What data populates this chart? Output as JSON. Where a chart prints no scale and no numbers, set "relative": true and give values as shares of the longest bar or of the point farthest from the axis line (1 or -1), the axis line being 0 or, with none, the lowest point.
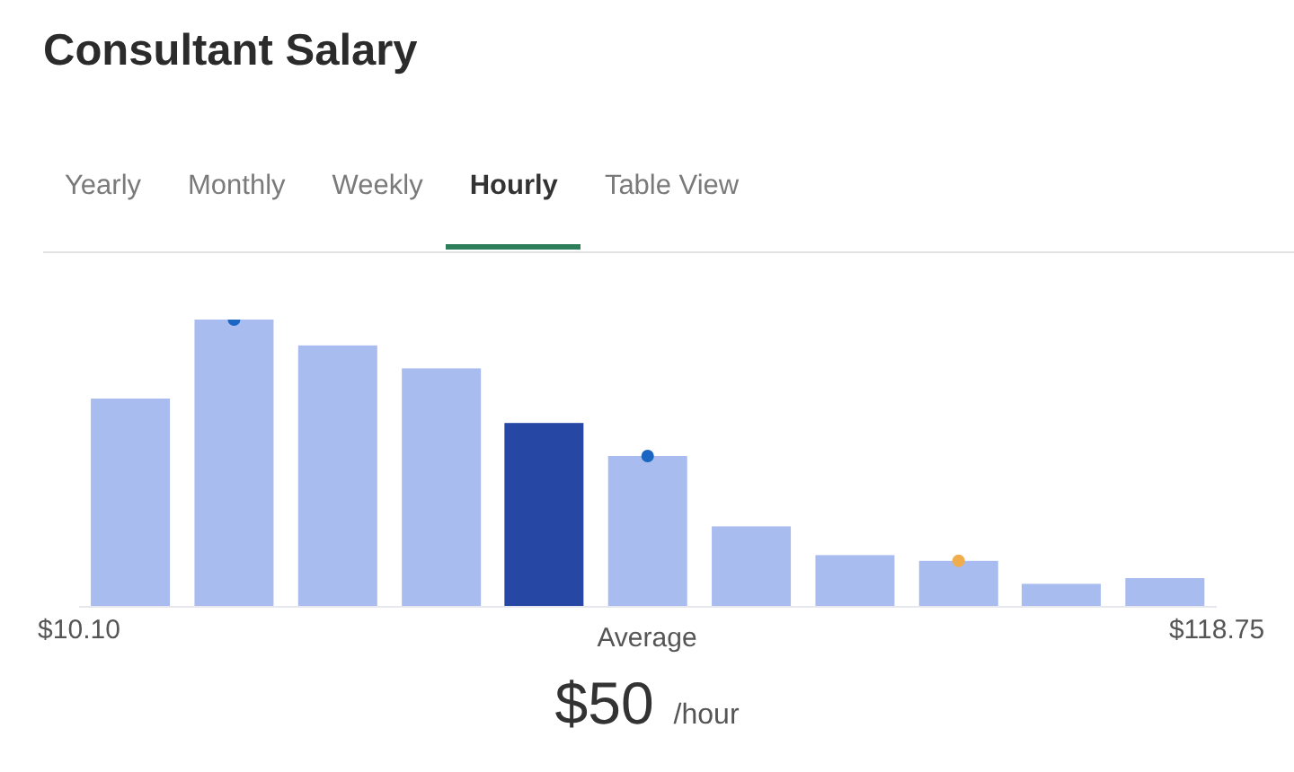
{
  "chart_data": {
    "type": "bar",
    "relative": true,
    "title": "Consultant Salary",
    "x": [
      15.0,
      24.9,
      34.8,
      44.7,
      54.5,
      64.4,
      74.3,
      84.2,
      94.1,
      103.9,
      113.8
    ],
    "xlim": [
      10.1,
      118.75
    ],
    "xticks": [
      {
        "value": 10.1,
        "label": "$10.10"
      },
      {
        "value": 118.75,
        "label": "$118.75"
      }
    ],
    "series": [
      {
        "type": "bar",
        "values": [
          0.725,
          1,
          0.91,
          0.83,
          0.64,
          0.525,
          0.28,
          0.18,
          0.16,
          0.08,
          0.1
        ],
        "colors": [
          "#a8bcef",
          "#a8bcef",
          "#a8bcef",
          "#a8bcef",
          "#2647a4",
          "#a8bcef",
          "#a8bcef",
          "#a8bcef",
          "#a8bcef",
          "#a8bcef",
          "#a8bcef"
        ]
      },
      {
        "type": "scatter",
        "color": "#1a66c2",
        "x": [
          24.9,
          64.4
        ],
        "values": [
          1,
          0.525
        ]
      },
      {
        "type": "scatter",
        "color": "#f0ad4e",
        "x": [
          94.1
        ],
        "values": [
          0.16
        ]
      }
    ],
    "marker": "circle",
    "annotations": [
      "Yearly",
      "Monthly",
      "Weekly",
      "Hourly",
      "Table View",
      "Average",
      "$50",
      "/hour"
    ]
  }
}
